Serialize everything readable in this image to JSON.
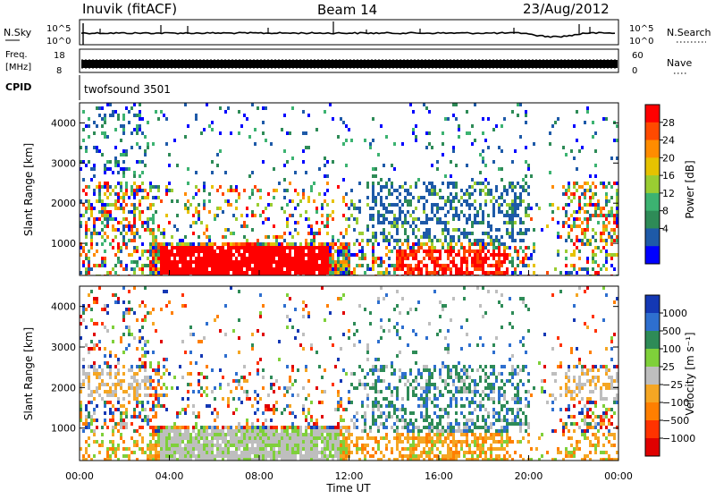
{
  "header": {
    "station": "Inuvik (fitACF)",
    "beam": "Beam 14",
    "date": "23/Aug/2012"
  },
  "panels": {
    "nsky": {
      "left_label": "N.Sky",
      "left_ticks": [
        "10^5",
        "10^0"
      ],
      "right_ticks": [
        "10^5",
        "10^0"
      ],
      "right_label": "N.Search"
    },
    "freq": {
      "left_label_line1": "Freq.",
      "left_label_line2": "[MHz]",
      "left_ticks": [
        "18",
        "8"
      ],
      "right_ticks": [
        "60",
        "0"
      ],
      "right_label": "Nave"
    },
    "cpid": {
      "left_label": "CPID",
      "text": "twofsound 3501"
    }
  },
  "chart_data": [
    {
      "type": "heatmap",
      "name": "power",
      "ylabel": "Slant Range [km]",
      "xlabel": "",
      "yticks": [
        1000,
        2000,
        3000,
        4000
      ],
      "ylim": [
        200,
        4500
      ],
      "xlim": [
        0,
        24
      ],
      "colorbar": {
        "label": "Power [dB]",
        "ticks": [
          "28",
          "24",
          "20",
          "16",
          "12",
          "8",
          "4"
        ],
        "colors": [
          "#ff0000",
          "#ff4a00",
          "#ff8c00",
          "#e6c200",
          "#9acd32",
          "#3cb371",
          "#2e8b57",
          "#1e5aa8",
          "#0000ff"
        ]
      }
    },
    {
      "type": "heatmap",
      "name": "velocity",
      "ylabel": "Slant Range [km]",
      "xlabel": "Time UT",
      "yticks": [
        1000,
        2000,
        3000,
        4000
      ],
      "ylim": [
        200,
        4500
      ],
      "xlim": [
        0,
        24
      ],
      "xticks": [
        "00:00",
        "04:00",
        "08:00",
        "12:00",
        "16:00",
        "20:00",
        "00:00"
      ],
      "colorbar": {
        "label": "Velocity [m s⁻¹]",
        "ticks": [
          "1000",
          "500",
          "100",
          "25",
          "−25",
          "−100",
          "−500",
          "−1000"
        ],
        "colors": [
          "#1438b4",
          "#2e6fcf",
          "#2e8b57",
          "#7fd03a",
          "#bebebe",
          "#f5a623",
          "#ff7f00",
          "#ff3300",
          "#e00000"
        ]
      }
    }
  ]
}
